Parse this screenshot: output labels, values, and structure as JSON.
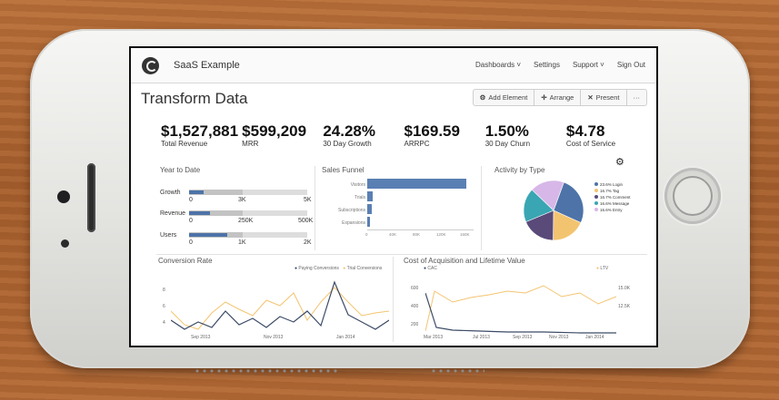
{
  "app": {
    "name": "SaaS Example"
  },
  "nav": [
    "Dashboards ˅",
    "Settings",
    "Support ˅",
    "Sign Out"
  ],
  "page": {
    "title": "Transform Data"
  },
  "toolbar": {
    "add": "Add Element",
    "arrange": "Arrange",
    "present": "Present",
    "more": "···"
  },
  "kpis": [
    {
      "value": "$1,527,881",
      "label": "Total Revenue"
    },
    {
      "value": "$599,209",
      "label": "MRR"
    },
    {
      "value": "24.28%",
      "label": "30 Day Growth"
    },
    {
      "value": "$169.59",
      "label": "ARRPC"
    },
    {
      "value": "1.50%",
      "label": "30 Day Churn"
    },
    {
      "value": "$4.78",
      "label": "Cost of Service"
    }
  ],
  "ytd": {
    "title": "Year to Date",
    "rows": [
      {
        "label": "Growth",
        "left": "0",
        "mid": "3K",
        "right": "5K",
        "fill": 0.12,
        "mid_fill": 0.45
      },
      {
        "label": "Revenue",
        "left": "0",
        "mid": "250K",
        "right": "500K",
        "fill": 0.18,
        "mid_fill": 0.45
      },
      {
        "label": "Users",
        "left": "0",
        "mid": "1K",
        "right": "2K",
        "fill": 0.32,
        "mid_fill": 0.45
      }
    ]
  },
  "funnel": {
    "title": "Sales Funnel",
    "stages": [
      {
        "label": "Visitors",
        "value": 0.93
      },
      {
        "label": "Trials",
        "value": 0.05
      },
      {
        "label": "Subscriptions",
        "value": 0.04
      },
      {
        "label": "Expansions",
        "value": 0.02
      }
    ],
    "ticks": [
      "0",
      "40K",
      "80K",
      "120K",
      "160K"
    ]
  },
  "activity": {
    "title": "Activity by Type",
    "legend": [
      {
        "text": "23.6% Login",
        "color": "#4d73a8",
        "value": 23.6
      },
      {
        "text": "16.7% Tag",
        "color": "#f3c470",
        "value": 16.7
      },
      {
        "text": "16.7% Comment",
        "color": "#5a4a7a",
        "value": 16.7
      },
      {
        "text": "16.6% Message",
        "color": "#3aa6b3",
        "value": 16.6
      },
      {
        "text": "16.6% Entry",
        "color": "#d7b7e8",
        "value": 16.6
      }
    ]
  },
  "conversion": {
    "title": "Conversion Rate",
    "legend": [
      "Paying Conversions",
      "Trial Conversions"
    ],
    "yticks": [
      "8",
      "6",
      "4"
    ],
    "xticks": [
      "Sep 2013",
      "Nov 2013",
      "Jan 2014"
    ]
  },
  "cac": {
    "title": "Cost of Acquisition and Lifetime Value",
    "legend_left": "CAC",
    "legend_right": "LTV",
    "yticks_left": [
      "600",
      "400",
      "200"
    ],
    "yticks_right": [
      "15.0K",
      "12.5K"
    ],
    "xticks": [
      "Mar 2013",
      "Jul 2013",
      "Sep 2013",
      "Nov 2013",
      "Jan 2014"
    ]
  },
  "colors": {
    "blue": "#4d73a8",
    "orange": "#f3c470",
    "line_dark": "#3b4a66"
  }
}
